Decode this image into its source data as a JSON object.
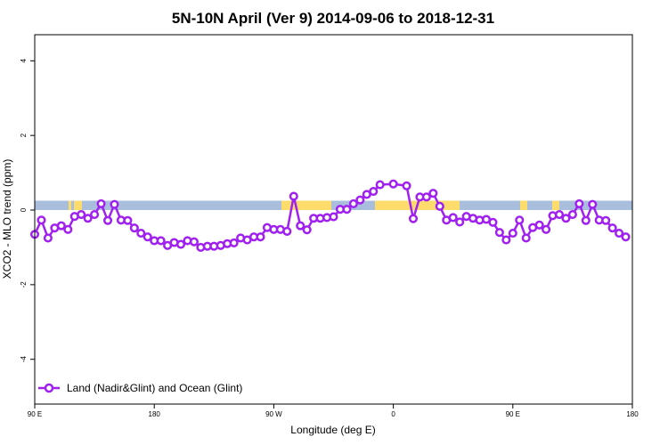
{
  "colors": {
    "series": "#a020f0",
    "ocean_band": "#a8bedc",
    "land_band": "#fddc6c",
    "frame": "#000000"
  },
  "chart_data": {
    "type": "line",
    "title": "5N-10N April (Ver 9)   2014-09-06 to 2018-12-31",
    "xlabel": "Longitude (deg E)",
    "ylabel": "XCO2 - MLO trend (ppm)",
    "xlim": [
      90,
      540
    ],
    "ylim": [
      -5.2,
      4.7
    ],
    "x_ticks": [
      {
        "value": 90,
        "label": "90 E"
      },
      {
        "value": 180,
        "label": "180"
      },
      {
        "value": 270,
        "label": "90 W"
      },
      {
        "value": 360,
        "label": "0"
      },
      {
        "value": 450,
        "label": "90 E"
      },
      {
        "value": 540,
        "label": "180"
      }
    ],
    "y_ticks": [
      {
        "value": 4,
        "label": "4"
      },
      {
        "value": 2,
        "label": "2"
      },
      {
        "value": 0,
        "label": "0"
      },
      {
        "value": -2,
        "label": "-2"
      },
      {
        "value": -4,
        "label": "-4"
      }
    ],
    "grid": false,
    "legend_position": "bottom-left",
    "land_ocean_band": {
      "y_range": [
        0,
        0.25
      ]
    },
    "series": [
      {
        "name": "Land (Nadir&Glint) and Ocean (Glint)",
        "marker": "open-circle",
        "points": [
          [
            90,
            -0.65
          ],
          [
            95,
            -0.27
          ],
          [
            100,
            -0.75
          ],
          [
            105,
            -0.48
          ],
          [
            110,
            -0.42
          ],
          [
            115,
            -0.52
          ],
          [
            120,
            -0.17
          ],
          [
            125,
            -0.12
          ],
          [
            130,
            -0.22
          ],
          [
            135,
            -0.12
          ],
          [
            140,
            0.17
          ],
          [
            145,
            -0.28
          ],
          [
            150,
            0.15
          ],
          [
            155,
            -0.27
          ],
          [
            160,
            -0.28
          ],
          [
            165,
            -0.48
          ],
          [
            170,
            -0.62
          ],
          [
            175,
            -0.72
          ],
          [
            180,
            -0.82
          ],
          [
            185,
            -0.82
          ],
          [
            190,
            -0.95
          ],
          [
            195,
            -0.87
          ],
          [
            200,
            -0.92
          ],
          [
            205,
            -0.82
          ],
          [
            210,
            -0.85
          ],
          [
            215,
            -1.0
          ],
          [
            220,
            -0.97
          ],
          [
            225,
            -0.97
          ],
          [
            230,
            -0.95
          ],
          [
            235,
            -0.9
          ],
          [
            240,
            -0.88
          ],
          [
            245,
            -0.75
          ],
          [
            250,
            -0.8
          ],
          [
            255,
            -0.72
          ],
          [
            260,
            -0.72
          ],
          [
            265,
            -0.47
          ],
          [
            270,
            -0.52
          ],
          [
            275,
            -0.52
          ],
          [
            280,
            -0.57
          ],
          [
            285,
            0.37
          ],
          [
            290,
            -0.42
          ],
          [
            295,
            -0.53
          ],
          [
            300,
            -0.22
          ],
          [
            305,
            -0.22
          ],
          [
            310,
            -0.2
          ],
          [
            315,
            -0.18
          ],
          [
            320,
            0.02
          ],
          [
            325,
            0.02
          ],
          [
            330,
            0.17
          ],
          [
            335,
            0.27
          ],
          [
            340,
            0.42
          ],
          [
            345,
            0.5
          ],
          [
            350,
            0.68
          ],
          [
            360,
            0.7
          ],
          [
            370,
            0.65
          ],
          [
            375,
            -0.23
          ],
          [
            380,
            0.35
          ],
          [
            385,
            0.35
          ],
          [
            390,
            0.45
          ],
          [
            395,
            0.1
          ],
          [
            400,
            -0.27
          ],
          [
            405,
            -0.2
          ],
          [
            410,
            -0.32
          ],
          [
            415,
            -0.17
          ],
          [
            420,
            -0.22
          ],
          [
            425,
            -0.27
          ],
          [
            430,
            -0.25
          ],
          [
            435,
            -0.33
          ],
          [
            440,
            -0.6
          ],
          [
            445,
            -0.8
          ],
          [
            450,
            -0.62
          ],
          [
            455,
            -0.27
          ],
          [
            460,
            -0.75
          ],
          [
            465,
            -0.47
          ],
          [
            470,
            -0.4
          ],
          [
            475,
            -0.52
          ],
          [
            480,
            -0.15
          ],
          [
            485,
            -0.12
          ],
          [
            490,
            -0.22
          ],
          [
            495,
            -0.12
          ],
          [
            500,
            0.17
          ],
          [
            505,
            -0.28
          ],
          [
            510,
            0.15
          ],
          [
            515,
            -0.27
          ],
          [
            520,
            -0.28
          ],
          [
            525,
            -0.48
          ],
          [
            530,
            -0.62
          ],
          [
            535,
            -0.72
          ]
        ]
      }
    ]
  }
}
